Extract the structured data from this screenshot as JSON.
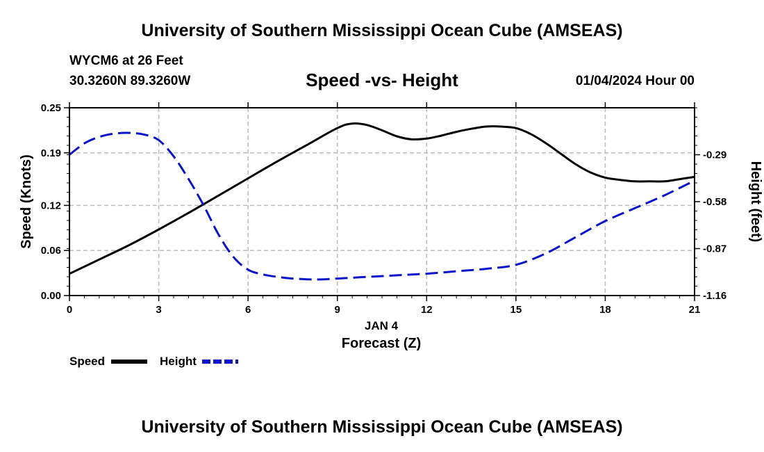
{
  "header": {
    "title": "University of Southern Mississippi Ocean Cube (AMSEAS)",
    "station": "WYCM6 at 26 Feet",
    "coords": "30.3260N  89.3260W",
    "subtitle": "Speed -vs- Height",
    "datetime": "01/04/2024 Hour 00"
  },
  "footer": {
    "title": "University of Southern Mississippi Ocean Cube (AMSEAS)"
  },
  "colors": {
    "speed": "#000000",
    "height": "#0a14c8",
    "grid": "#bbbbbb"
  },
  "chart_data": {
    "type": "line",
    "title": "Speed -vs- Height",
    "xlabel": "Forecast (Z)",
    "xlabel_date": "JAN 4",
    "ylabel": "Speed (Knots)",
    "y2label": "Height (feet)",
    "xlim": [
      0,
      21
    ],
    "ylim": [
      0,
      0.25
    ],
    "y2lim": [
      -1.16,
      0
    ],
    "x_ticks": [
      "0",
      "3",
      "6",
      "9",
      "12",
      "15",
      "18",
      "21"
    ],
    "y_ticks": [
      "0.00",
      "0.06",
      "0.12",
      "0.19",
      "0.25"
    ],
    "y2_ticks": [
      "-1.16",
      "-0.87",
      "-0.58",
      "-0.29"
    ],
    "grid": true,
    "legend": [
      "Speed",
      "Height"
    ],
    "legend_position": "bottom-left",
    "series": [
      {
        "name": "Speed",
        "axis": "left",
        "style": "solid",
        "x": [
          0,
          1,
          2,
          3,
          4,
          5,
          6,
          7,
          8,
          9,
          9.5,
          10,
          10.5,
          11,
          11.5,
          12,
          12.5,
          13,
          13.5,
          14,
          14.5,
          15,
          15.5,
          16,
          16.5,
          17,
          17.5,
          18,
          18.5,
          19,
          19.5,
          20,
          20.5,
          21
        ],
        "values": [
          0.029,
          0.048,
          0.067,
          0.088,
          0.11,
          0.133,
          0.156,
          0.179,
          0.201,
          0.223,
          0.229,
          0.227,
          0.22,
          0.212,
          0.208,
          0.209,
          0.213,
          0.218,
          0.222,
          0.225,
          0.225,
          0.223,
          0.215,
          0.203,
          0.189,
          0.175,
          0.164,
          0.157,
          0.154,
          0.152,
          0.152,
          0.152,
          0.155,
          0.158
        ]
      },
      {
        "name": "Height",
        "axis": "right",
        "style": "dashed",
        "x": [
          0,
          0.5,
          1,
          1.5,
          2,
          2.5,
          3,
          3.5,
          4,
          4.5,
          5,
          5.5,
          6,
          6.5,
          7,
          7.5,
          8,
          8.5,
          9,
          10,
          11,
          12,
          13,
          14,
          15,
          16,
          17,
          18,
          19,
          20,
          21
        ],
        "values": [
          -0.29,
          -0.22,
          -0.18,
          -0.16,
          -0.155,
          -0.165,
          -0.2,
          -0.3,
          -0.44,
          -0.6,
          -0.78,
          -0.92,
          -1.0,
          -1.03,
          -1.045,
          -1.055,
          -1.06,
          -1.06,
          -1.055,
          -1.045,
          -1.035,
          -1.025,
          -1.01,
          -0.995,
          -0.97,
          -0.9,
          -0.8,
          -0.7,
          -0.62,
          -0.54,
          -0.45
        ]
      }
    ]
  }
}
